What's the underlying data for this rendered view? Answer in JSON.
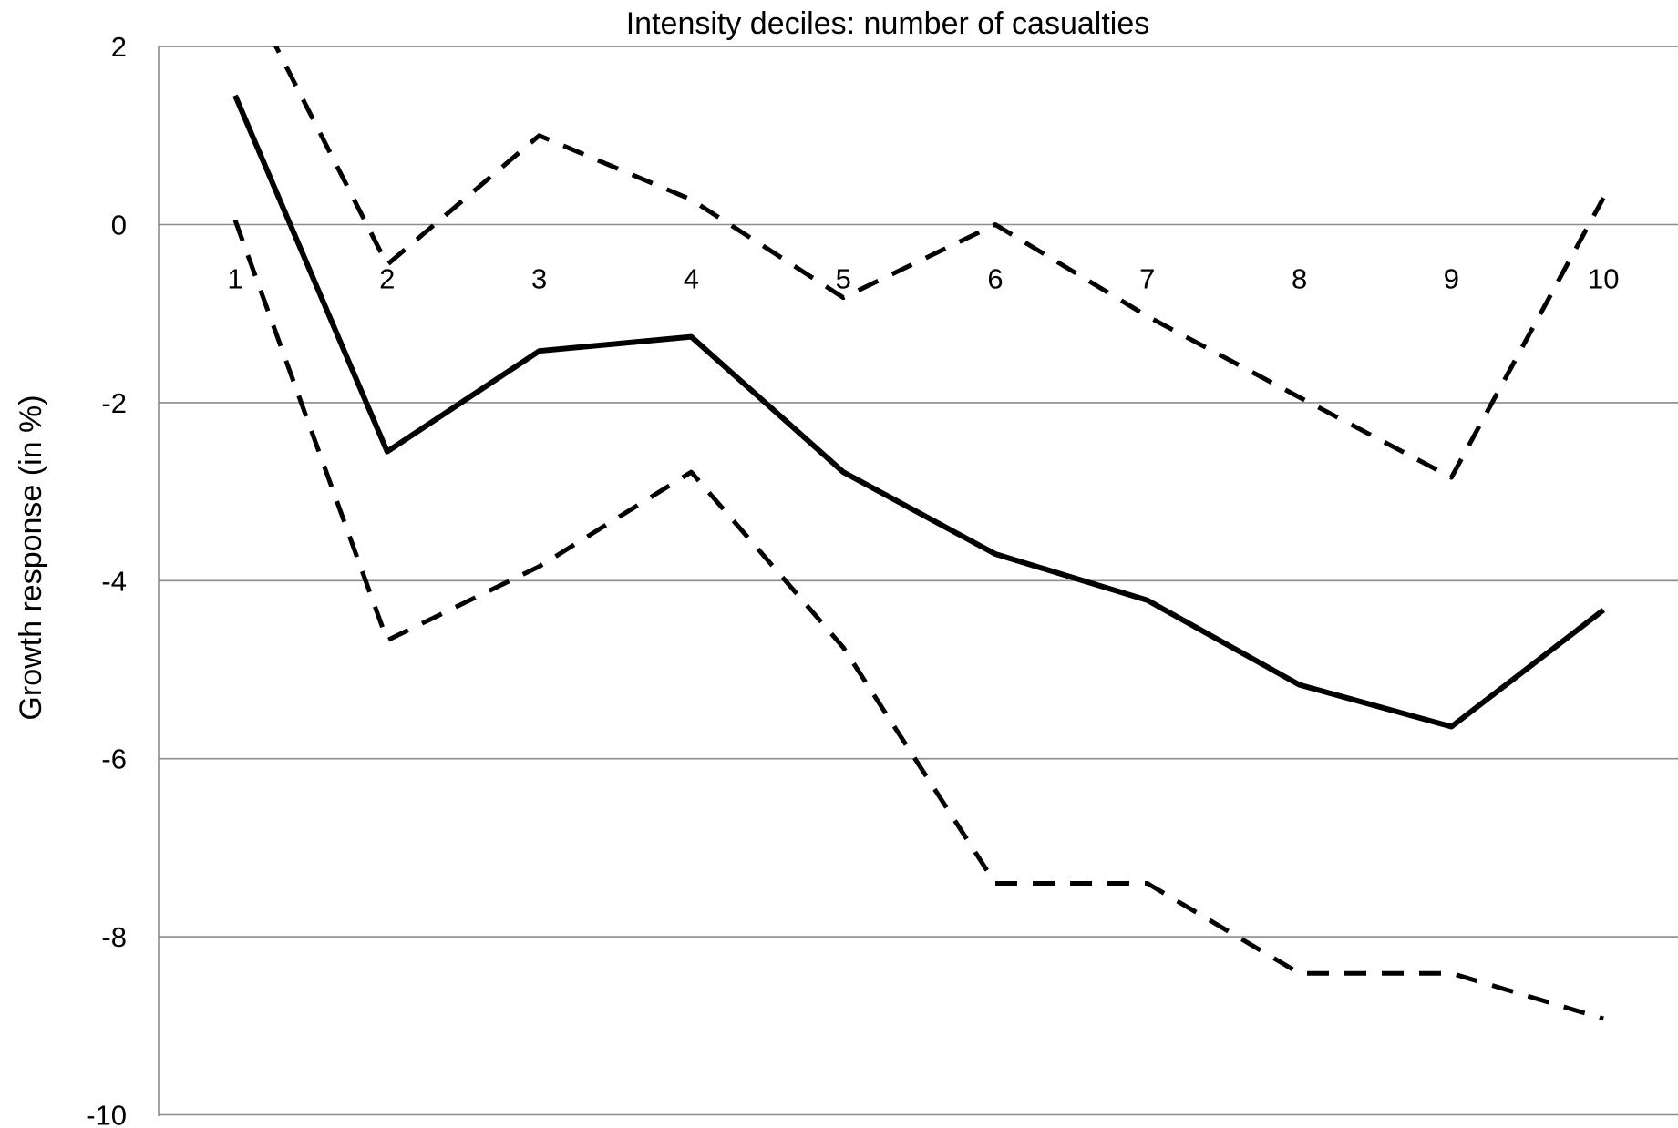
{
  "chart_data": {
    "type": "line",
    "title": "Intensity deciles: number of casualties",
    "xlabel": "",
    "ylabel": "Growth response (in %)",
    "x": [
      1,
      2,
      3,
      4,
      5,
      6,
      7,
      8,
      9,
      10
    ],
    "x_tick_labels": [
      "1",
      "2",
      "3",
      "4",
      "5",
      "6",
      "7",
      "8",
      "9",
      "10"
    ],
    "y_tick_labels": [
      "2",
      "0",
      "-2",
      "-4",
      "-6",
      "-8",
      "-10"
    ],
    "y_ticks": [
      2,
      0,
      -2,
      -4,
      -6,
      -8,
      -10
    ],
    "ylim": [
      -10,
      2
    ],
    "grid": true,
    "legend": "none",
    "series": [
      {
        "style": "solid",
        "color": "#000000",
        "values": [
          1.45,
          -2.55,
          -1.42,
          -1.26,
          -2.78,
          -3.7,
          -4.22,
          -5.17,
          -5.64,
          -4.33
        ]
      },
      {
        "style": "dashed",
        "color": "#000000",
        "values": [
          2.9,
          -0.45,
          1.0,
          0.28,
          -0.82,
          0.0,
          -1.03,
          -1.94,
          -2.84,
          0.3
        ]
      },
      {
        "style": "dashed",
        "color": "#000000",
        "values": [
          0.05,
          -4.67,
          -3.84,
          -2.78,
          -4.75,
          -7.4,
          -7.4,
          -8.41,
          -8.41,
          -8.92
        ]
      }
    ]
  }
}
